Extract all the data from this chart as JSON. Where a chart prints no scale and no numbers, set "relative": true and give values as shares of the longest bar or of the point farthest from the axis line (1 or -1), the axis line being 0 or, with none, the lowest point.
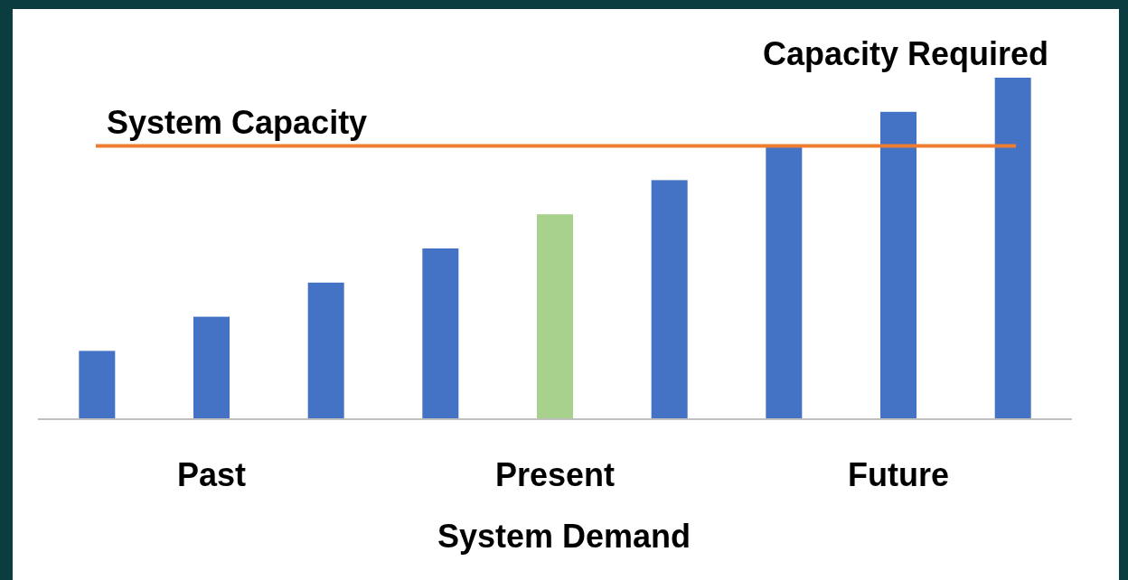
{
  "chart_data": {
    "type": "bar",
    "relative": true,
    "xlabel": "System Demand",
    "categories": [
      null,
      "Past",
      null,
      null,
      "Present",
      null,
      null,
      "Future",
      null
    ],
    "values": [
      0.2,
      0.3,
      0.4,
      0.5,
      0.6,
      0.7,
      0.8,
      0.9,
      1.0
    ],
    "colors": [
      "#4472c4",
      "#4472c4",
      "#4472c4",
      "#4472c4",
      "#a9d18e",
      "#4472c4",
      "#4472c4",
      "#4472c4",
      "#4472c4"
    ],
    "ref_lines": [
      {
        "axis": "y",
        "value": 0.8,
        "label": "System Capacity",
        "color": "#ed7d31"
      }
    ],
    "annotations": [
      "Capacity Required"
    ]
  }
}
